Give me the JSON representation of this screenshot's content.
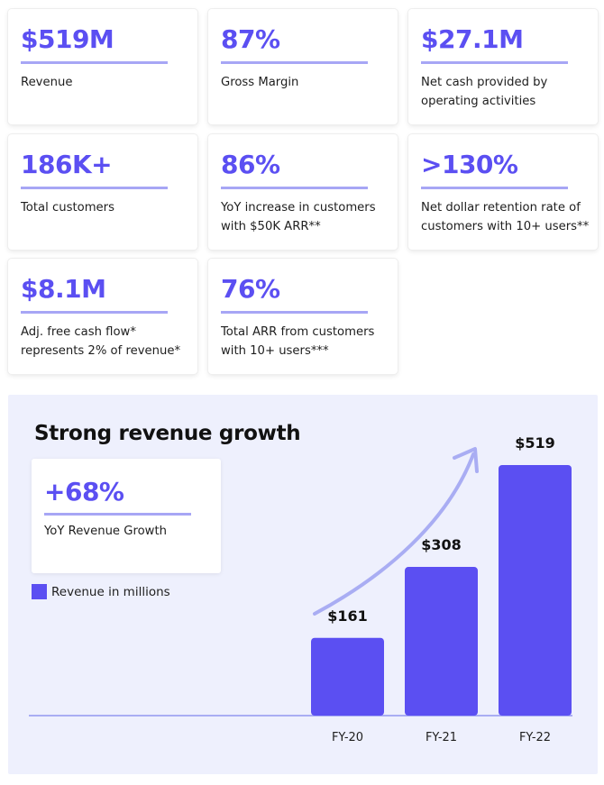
{
  "kpi_cards": [
    {
      "value": "$519M",
      "label": "Revenue"
    },
    {
      "value": "87%",
      "label": "Gross Margin"
    },
    {
      "value": "$27.1M",
      "label": "Net cash provided by\noperating activities"
    },
    {
      "value": "186K+",
      "label": "Total customers"
    },
    {
      "value": "86%",
      "label": "YoY increase in customers\nwith $50K ARR**"
    },
    {
      "value": ">130%",
      "label": "Net dollar retention rate of\ncustomers with 10+ users**"
    },
    {
      "value": "$8.1M",
      "label": "Adj. free cash flow*\nrepresents 2% of revenue*"
    },
    {
      "value": "76%",
      "label": "Total ARR from customers\nwith 10+ users***"
    }
  ],
  "growth_card": {
    "value": "+68%",
    "label": "YoY Revenue Growth"
  },
  "colors": {
    "accent": "#5b4ff2",
    "underline": "#a7a6f5",
    "panel_bg": "#eef0fd",
    "arrow": "#a9adf3",
    "axis": "#a9adf3"
  },
  "chart_data": {
    "type": "bar",
    "title": "Strong revenue growth",
    "categories": [
      "FY-20",
      "FY-21",
      "FY-22"
    ],
    "series": [
      {
        "name": "Revenue in millions",
        "values": [
          161,
          308,
          519
        ]
      }
    ],
    "data_labels": [
      "$161",
      "$308",
      "$519"
    ],
    "ylim": [
      0,
      519
    ],
    "grid": false,
    "legend_position": "left",
    "annotation": "upward growth arrow"
  }
}
